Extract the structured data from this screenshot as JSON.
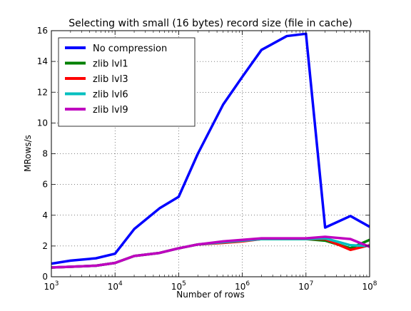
{
  "chart_data": {
    "type": "line",
    "title": "Selecting with small (16 bytes) record size (file in cache)",
    "xlabel": "Number of rows",
    "ylabel": "MRows/s",
    "x_scale": "log10",
    "xlim": [
      1000,
      100000000
    ],
    "ylim": [
      0,
      16
    ],
    "x_ticks": [
      {
        "value": 1000,
        "base": "10",
        "exp": "3"
      },
      {
        "value": 10000,
        "base": "10",
        "exp": "4"
      },
      {
        "value": 100000,
        "base": "10",
        "exp": "5"
      },
      {
        "value": 1000000,
        "base": "10",
        "exp": "6"
      },
      {
        "value": 10000000,
        "base": "10",
        "exp": "7"
      },
      {
        "value": 100000000,
        "base": "10",
        "exp": "8"
      }
    ],
    "y_ticks": [
      0,
      2,
      4,
      6,
      8,
      10,
      12,
      14,
      16
    ],
    "grid": true,
    "legend_position": "top-left",
    "x": [
      1000,
      2000,
      5000,
      10000,
      20000,
      50000,
      100000,
      200000,
      500000,
      1000000,
      2000000,
      5000000,
      10000000,
      20000000,
      50000000,
      100000000
    ],
    "series": [
      {
        "name": "No compression",
        "color": "#0000ff",
        "values": [
          0.85,
          1.05,
          1.2,
          1.5,
          3.1,
          4.45,
          5.2,
          8.0,
          11.2,
          13.0,
          14.75,
          15.65,
          15.8,
          3.2,
          3.95,
          3.25
        ]
      },
      {
        "name": "zlib lvl1",
        "color": "#008000",
        "values": [
          0.6,
          0.65,
          0.72,
          0.9,
          1.35,
          1.55,
          1.85,
          2.1,
          2.25,
          2.35,
          2.45,
          2.45,
          2.45,
          2.35,
          1.85,
          2.4
        ]
      },
      {
        "name": "zlib lvl3",
        "color": "#ff0000",
        "values": [
          0.6,
          0.65,
          0.72,
          0.9,
          1.35,
          1.55,
          1.85,
          2.1,
          2.2,
          2.3,
          2.45,
          2.45,
          2.45,
          2.45,
          1.75,
          2.05
        ]
      },
      {
        "name": "zlib lvl6",
        "color": "#00bfbf",
        "values": [
          0.6,
          0.65,
          0.72,
          0.9,
          1.35,
          1.55,
          1.85,
          2.1,
          2.25,
          2.35,
          2.45,
          2.45,
          2.45,
          2.5,
          2.05,
          2.0
        ]
      },
      {
        "name": "zlib lvl9",
        "color": "#bf00bf",
        "values": [
          0.6,
          0.65,
          0.72,
          0.9,
          1.35,
          1.55,
          1.85,
          2.1,
          2.3,
          2.4,
          2.5,
          2.5,
          2.5,
          2.6,
          2.45,
          1.95
        ]
      }
    ]
  }
}
